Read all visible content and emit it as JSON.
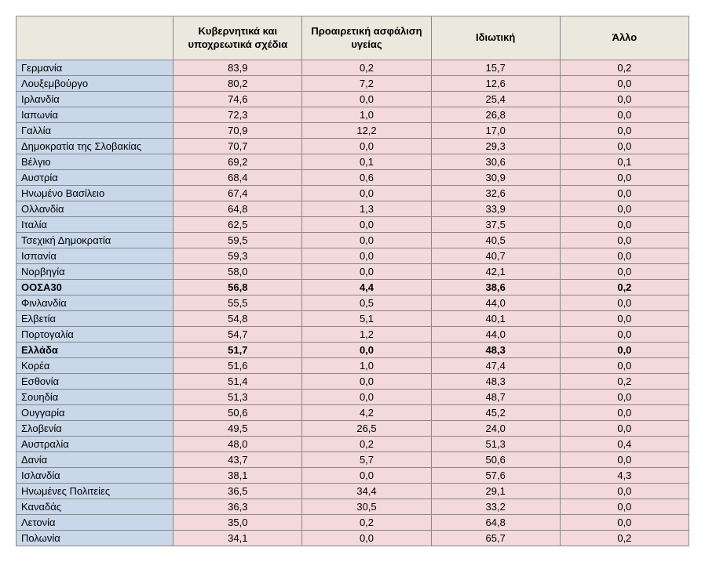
{
  "table": {
    "type": "table",
    "background_color": "#ffffff",
    "header_bg": "#ebe8de",
    "label_bg": "#c9d7ea",
    "value_bg": "#f3d9d9",
    "border_color": "#888888",
    "font_size": 13,
    "columns": [
      {
        "key": "name",
        "label": ""
      },
      {
        "key": "c1",
        "label": "Κυβερνητικά και υποχρεωτικά σχέδια"
      },
      {
        "key": "c2",
        "label": "Προαιρετική ασφάλιση υγείας"
      },
      {
        "key": "c3",
        "label": "Ιδιωτική"
      },
      {
        "key": "c4",
        "label": "Άλλο"
      }
    ],
    "rows": [
      {
        "name": "Γερμανία",
        "c1": "83,9",
        "c2": "0,2",
        "c3": "15,7",
        "c4": "0,2",
        "bold": false
      },
      {
        "name": "Λουξεμβούργο",
        "c1": "80,2",
        "c2": "7,2",
        "c3": "12,6",
        "c4": "0,0",
        "bold": false
      },
      {
        "name": "Ιρλανδία",
        "c1": "74,6",
        "c2": "0,0",
        "c3": "25,4",
        "c4": "0,0",
        "bold": false
      },
      {
        "name": "Ιαπωνία",
        "c1": "72,3",
        "c2": "1,0",
        "c3": "26,8",
        "c4": "0,0",
        "bold": false
      },
      {
        "name": "Γαλλία",
        "c1": "70,9",
        "c2": "12,2",
        "c3": "17,0",
        "c4": "0,0",
        "bold": false
      },
      {
        "name": "Δημοκρατία της Σλοβακίας",
        "c1": "70,7",
        "c2": "0,0",
        "c3": "29,3",
        "c4": "0,0",
        "bold": false
      },
      {
        "name": "Βέλγιο",
        "c1": "69,2",
        "c2": "0,1",
        "c3": "30,6",
        "c4": "0,1",
        "bold": false
      },
      {
        "name": "Αυστρία",
        "c1": "68,4",
        "c2": "0,6",
        "c3": "30,9",
        "c4": "0,0",
        "bold": false
      },
      {
        "name": "Ηνωμένο Βασίλειο",
        "c1": "67,4",
        "c2": "0,0",
        "c3": "32,6",
        "c4": "0,0",
        "bold": false
      },
      {
        "name": "Ολλανδία",
        "c1": "64,8",
        "c2": "1,3",
        "c3": "33,9",
        "c4": "0,0",
        "bold": false
      },
      {
        "name": "Ιταλία",
        "c1": "62,5",
        "c2": "0,0",
        "c3": "37,5",
        "c4": "0,0",
        "bold": false
      },
      {
        "name": "Τσεχική Δημοκρατία",
        "c1": "59,5",
        "c2": "0,0",
        "c3": "40,5",
        "c4": "0,0",
        "bold": false
      },
      {
        "name": "Ισπανία",
        "c1": "59,3",
        "c2": "0,0",
        "c3": "40,7",
        "c4": "0,0",
        "bold": false
      },
      {
        "name": "Νορβηγία",
        "c1": "58,0",
        "c2": "0,0",
        "c3": "42,1",
        "c4": "0,0",
        "bold": false
      },
      {
        "name": "ΟΟΣΑ30",
        "c1": "56,8",
        "c2": "4,4",
        "c3": "38,6",
        "c4": "0,2",
        "bold": true
      },
      {
        "name": "Φινλανδία",
        "c1": "55,5",
        "c2": "0,5",
        "c3": "44,0",
        "c4": "0,0",
        "bold": false
      },
      {
        "name": "Ελβετία",
        "c1": "54,8",
        "c2": "5,1",
        "c3": "40,1",
        "c4": "0,0",
        "bold": false
      },
      {
        "name": "Πορτογαλία",
        "c1": "54,7",
        "c2": "1,2",
        "c3": "44,0",
        "c4": "0,0",
        "bold": false
      },
      {
        "name": "Ελλάδα",
        "c1": "51,7",
        "c2": "0,0",
        "c3": "48,3",
        "c4": "0,0",
        "bold": true
      },
      {
        "name": "Κορέα",
        "c1": "51,6",
        "c2": "1,0",
        "c3": "47,4",
        "c4": "0,0",
        "bold": false
      },
      {
        "name": "Εσθονία",
        "c1": "51,4",
        "c2": "0,0",
        "c3": "48,3",
        "c4": "0,2",
        "bold": false
      },
      {
        "name": "Σουηδία",
        "c1": "51,3",
        "c2": "0,0",
        "c3": "48,7",
        "c4": "0,0",
        "bold": false
      },
      {
        "name": "Ουγγαρία",
        "c1": "50,6",
        "c2": "4,2",
        "c3": "45,2",
        "c4": "0,0",
        "bold": false
      },
      {
        "name": "Σλοβενία",
        "c1": "49,5",
        "c2": "26,5",
        "c3": "24,0",
        "c4": "0,0",
        "bold": false
      },
      {
        "name": "Αυστραλία",
        "c1": "48,0",
        "c2": "0,2",
        "c3": "51,3",
        "c4": "0,4",
        "bold": false
      },
      {
        "name": "Δανία",
        "c1": "43,7",
        "c2": "5,7",
        "c3": "50,6",
        "c4": "0,0",
        "bold": false
      },
      {
        "name": "Ισλανδία",
        "c1": "38,1",
        "c2": "0,0",
        "c3": "57,6",
        "c4": "4,3",
        "bold": false
      },
      {
        "name": "Ηνωμένες Πολιτείες",
        "c1": "36,5",
        "c2": "34,4",
        "c3": "29,1",
        "c4": "0,0",
        "bold": false
      },
      {
        "name": "Καναδάς",
        "c1": "36,3",
        "c2": "30,5",
        "c3": "33,2",
        "c4": "0,0",
        "bold": false
      },
      {
        "name": "Λετονία",
        "c1": "35,0",
        "c2": "0,2",
        "c3": "64,8",
        "c4": "0,0",
        "bold": false
      },
      {
        "name": "Πολωνία",
        "c1": "34,1",
        "c2": "0,0",
        "c3": "65,7",
        "c4": "0,2",
        "bold": false
      }
    ]
  }
}
